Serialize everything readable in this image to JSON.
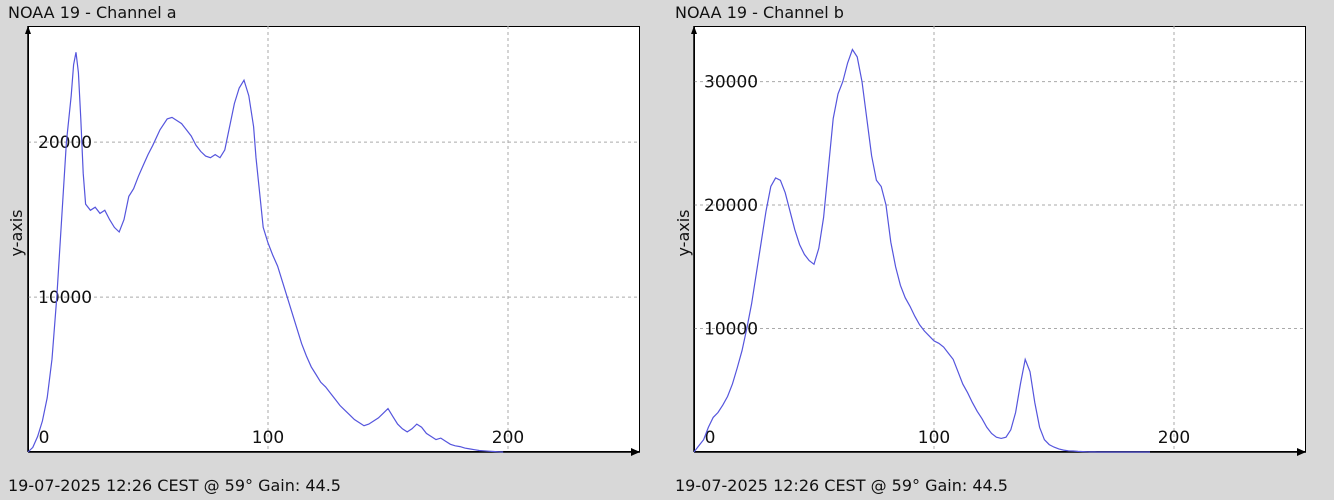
{
  "panels": [
    {
      "title": "NOAA 19 - Channel a",
      "footer": "19-07-2025 12:26 CEST @ 59° Gain: 44.5"
    },
    {
      "title": "NOAA 19 - Channel b",
      "footer": "19-07-2025 12:26 CEST @ 59° Gain: 44.5"
    }
  ],
  "chart_data": [
    {
      "type": "line",
      "title": "NOAA 19 - Channel a",
      "xlabel": "",
      "ylabel": "y-axis",
      "xlim": [
        0,
        255
      ],
      "ylim": [
        0,
        27500
      ],
      "xticks": [
        0,
        100,
        200
      ],
      "yticks": [
        10000,
        20000
      ],
      "grid": true,
      "series": [
        {
          "color": "#5555dd",
          "x": [
            0,
            2,
            4,
            6,
            8,
            10,
            12,
            14,
            16,
            18,
            19,
            20,
            21,
            22,
            23,
            24,
            26,
            28,
            30,
            32,
            34,
            36,
            38,
            40,
            42,
            44,
            46,
            48,
            50,
            52,
            55,
            58,
            60,
            62,
            64,
            66,
            68,
            70,
            72,
            74,
            76,
            78,
            80,
            82,
            84,
            86,
            88,
            90,
            92,
            94,
            95,
            96,
            97,
            98,
            100,
            102,
            104,
            106,
            108,
            110,
            112,
            114,
            116,
            118,
            120,
            122,
            124,
            126,
            128,
            130,
            132,
            134,
            136,
            138,
            140,
            142,
            144,
            146,
            148,
            150,
            152,
            154,
            156,
            158,
            160,
            162,
            164,
            166,
            168,
            170,
            172,
            174,
            176,
            178,
            180,
            182,
            184,
            186,
            188,
            190,
            192,
            194,
            196,
            198
          ],
          "values": [
            0,
            300,
            1000,
            2000,
            3500,
            6000,
            10000,
            15000,
            20000,
            23000,
            25000,
            25800,
            24500,
            21500,
            18000,
            16000,
            15600,
            15800,
            15400,
            15600,
            15000,
            14500,
            14200,
            15000,
            16500,
            17000,
            17800,
            18500,
            19200,
            19800,
            20800,
            21500,
            21600,
            21400,
            21200,
            20800,
            20400,
            19800,
            19400,
            19100,
            19000,
            19200,
            19000,
            19500,
            21000,
            22500,
            23500,
            24000,
            23000,
            21000,
            19000,
            17500,
            16000,
            14500,
            13500,
            12700,
            12000,
            11000,
            10000,
            9000,
            8000,
            7000,
            6200,
            5500,
            5000,
            4500,
            4200,
            3800,
            3400,
            3000,
            2700,
            2400,
            2100,
            1900,
            1700,
            1800,
            2000,
            2200,
            2500,
            2800,
            2300,
            1800,
            1500,
            1300,
            1500,
            1800,
            1600,
            1200,
            1000,
            800,
            900,
            700,
            500,
            400,
            350,
            250,
            200,
            150,
            100,
            80,
            50,
            30,
            10,
            0
          ]
        }
      ]
    },
    {
      "type": "line",
      "title": "NOAA 19 - Channel b",
      "xlabel": "",
      "ylabel": "y-axis",
      "xlim": [
        0,
        255
      ],
      "ylim": [
        0,
        34500
      ],
      "xticks": [
        0,
        100,
        200
      ],
      "yticks": [
        10000,
        20000,
        30000
      ],
      "grid": true,
      "series": [
        {
          "color": "#5555dd",
          "x": [
            0,
            2,
            4,
            6,
            8,
            10,
            12,
            14,
            16,
            18,
            20,
            22,
            24,
            26,
            28,
            30,
            32,
            34,
            36,
            38,
            40,
            42,
            44,
            46,
            48,
            50,
            52,
            54,
            56,
            58,
            60,
            62,
            64,
            66,
            68,
            70,
            72,
            74,
            76,
            78,
            80,
            81,
            82,
            83,
            84,
            86,
            88,
            90,
            92,
            94,
            96,
            98,
            100,
            102,
            104,
            106,
            108,
            110,
            112,
            114,
            116,
            118,
            120,
            122,
            124,
            126,
            128,
            130,
            132,
            134,
            136,
            138,
            140,
            142,
            144,
            146,
            148,
            150,
            152,
            154,
            156,
            158,
            160,
            162,
            164,
            165,
            166,
            167,
            168,
            170,
            172,
            174,
            176,
            178,
            180,
            182,
            184,
            186,
            188,
            190
          ],
          "values": [
            0,
            500,
            1000,
            2000,
            2800,
            3200,
            3800,
            4500,
            5500,
            6800,
            8200,
            10000,
            12000,
            14500,
            17000,
            19500,
            21500,
            22200,
            22000,
            21000,
            19500,
            18000,
            16800,
            16000,
            15500,
            15200,
            16500,
            19000,
            23000,
            27000,
            29000,
            30000,
            31500,
            32600,
            32000,
            30000,
            27000,
            24000,
            22000,
            21500,
            20000,
            18500,
            17000,
            16000,
            15000,
            13500,
            12500,
            11800,
            11000,
            10300,
            9800,
            9400,
            9000,
            8800,
            8500,
            8000,
            7500,
            6500,
            5500,
            4800,
            4000,
            3300,
            2700,
            2000,
            1500,
            1200,
            1100,
            1200,
            1800,
            3200,
            5500,
            7500,
            6500,
            4000,
            2000,
            1000,
            600,
            400,
            250,
            150,
            100,
            80,
            50,
            30,
            20,
            10,
            10,
            5,
            0,
            0,
            0,
            0,
            0,
            0,
            0,
            0,
            0,
            0,
            0,
            0
          ]
        }
      ]
    }
  ]
}
